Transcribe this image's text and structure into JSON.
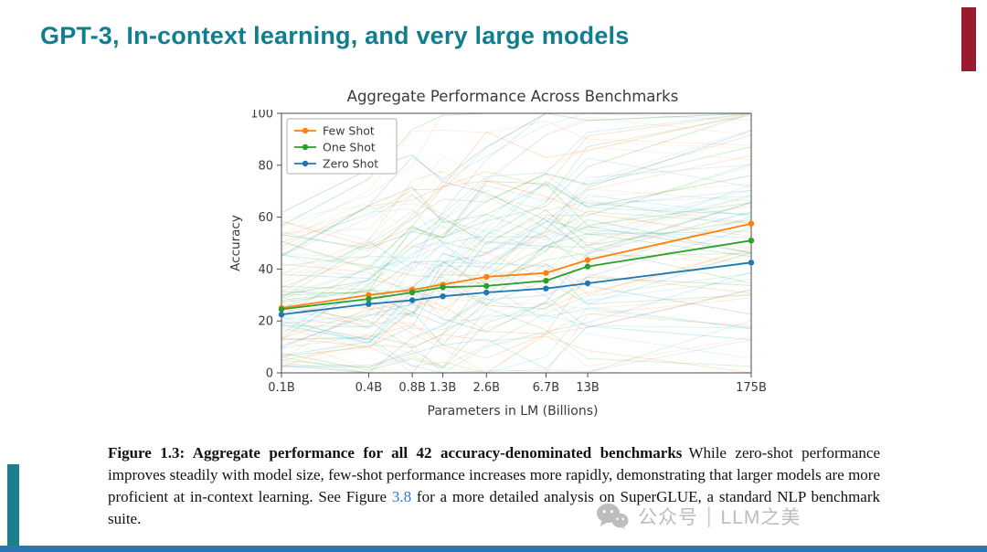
{
  "slide": {
    "title": "GPT-3, In-context learning, and very large models",
    "title_color": "#0f7e8f",
    "accent_bar_color": "#9a1b2f",
    "left_bar_color": "#1b7f8e",
    "bottom_bar_color": "#2e75b6"
  },
  "chart_data": {
    "type": "line",
    "title": "Aggregate Performance Across Benchmarks",
    "xlabel": "Parameters in LM (Billions)",
    "ylabel": "Accuracy",
    "x_scale": "log",
    "x_ticks": [
      0.1,
      0.4,
      0.8,
      1.3,
      2.6,
      6.7,
      13,
      175
    ],
    "x_tick_labels": [
      "0.1B",
      "0.4B",
      "0.8B",
      "1.3B",
      "2.6B",
      "6.7B",
      "13B",
      "175B"
    ],
    "ylim": [
      0,
      100
    ],
    "y_ticks": [
      0,
      20,
      40,
      60,
      80,
      100
    ],
    "grid": false,
    "legend_position": "upper left",
    "series": [
      {
        "name": "Few Shot",
        "color": "#ff7f0e",
        "x": [
          0.1,
          0.4,
          0.8,
          1.3,
          2.6,
          6.7,
          13,
          175
        ],
        "values": [
          25,
          30,
          32,
          34,
          37,
          38.5,
          43.5,
          57.5
        ]
      },
      {
        "name": "One Shot",
        "color": "#2ca02c",
        "x": [
          0.1,
          0.4,
          0.8,
          1.3,
          2.6,
          6.7,
          13,
          175
        ],
        "values": [
          24.5,
          28.5,
          31,
          33,
          33.5,
          35.5,
          41,
          51
        ]
      },
      {
        "name": "Zero Shot",
        "color": "#1f77b4",
        "x": [
          0.1,
          0.4,
          0.8,
          1.3,
          2.6,
          6.7,
          13,
          175
        ],
        "values": [
          22.5,
          26.5,
          28,
          29.5,
          31,
          32.5,
          34.5,
          42.5
        ]
      }
    ],
    "background_lines": {
      "description": "faint individual benchmark curves behind the aggregate lines",
      "count": 90,
      "colors": [
        "#1f77b4",
        "#2ca02c",
        "#ff7f0e",
        "#17becf"
      ],
      "base_opacity": 0.08
    }
  },
  "caption": {
    "bold": "Figure 1.3: Aggregate performance for all 42 accuracy-denominated benchmarks",
    "text_1": "While zero-shot performance improves steadily with model size, few-shot performance increases more rapidly, demonstrating that larger models are more proficient at in-context learning. See Figure ",
    "link": "3.8",
    "text_2": " for a more detailed analysis on SuperGLUE, a standard NLP benchmark suite.",
    "link_color": "#2f7bd6"
  },
  "watermark": {
    "icon": "wechat-icon",
    "text_1": "公众号",
    "divider": "|",
    "text_2": "LLM之美",
    "color": "#bdbdbd"
  }
}
